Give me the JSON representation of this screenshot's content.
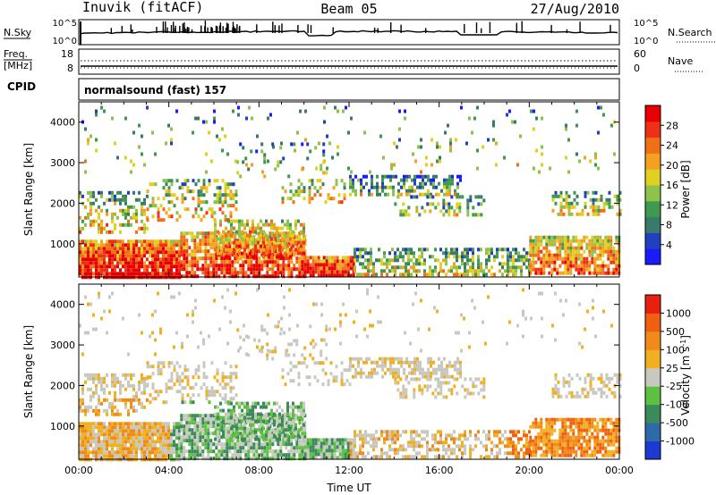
{
  "header": {
    "station": "Inuvik (fitACF)",
    "beam": "Beam 05",
    "date": "27/Aug/2010"
  },
  "top_panel": {
    "left_label": "N.Sky",
    "right_label": "N.Search",
    "left_ticks": [
      "10^5",
      "10^0"
    ],
    "right_ticks": [
      "10^5",
      "10^0"
    ]
  },
  "freq_panel": {
    "left_label_1": "Freq.",
    "left_label_2": "[MHz]",
    "right_label": "Nave",
    "left_ticks": [
      "18",
      "8"
    ],
    "right_ticks": [
      "60",
      "0"
    ]
  },
  "cpid": {
    "label": "CPID",
    "value": "normalsound (fast) 157"
  },
  "chart_data": [
    {
      "type": "heatmap",
      "quantity": "Power",
      "ylabel": "Slant Range [km]",
      "xlabel": "",
      "x_ticks": [
        "00:00",
        "04:00",
        "08:00",
        "12:00",
        "16:00",
        "20:00",
        "00:00"
      ],
      "y_ticks": [
        1000,
        2000,
        3000,
        4000
      ],
      "xlim_hours": [
        0,
        24
      ],
      "ylim_km": [
        180,
        4500
      ],
      "colorbar": {
        "label": "Power [dB]",
        "ticks": [
          4,
          8,
          12,
          16,
          20,
          24,
          28
        ],
        "colors": [
          "#1a1aff",
          "#2040c0",
          "#3a7a6a",
          "#3f9a50",
          "#8ec24a",
          "#e0d020",
          "#f4a020",
          "#f07018",
          "#ee3018",
          "#e80000"
        ]
      }
    },
    {
      "type": "heatmap",
      "quantity": "Velocity",
      "ylabel": "Slant Range [km]",
      "xlabel": "Time UT",
      "x_ticks": [
        "00:00",
        "04:00",
        "08:00",
        "12:00",
        "16:00",
        "20:00",
        "00:00"
      ],
      "y_ticks": [
        1000,
        2000,
        3000,
        4000
      ],
      "xlim_hours": [
        0,
        24
      ],
      "ylim_km": [
        180,
        4500
      ],
      "colorbar": {
        "label": "Velocity [m s^-1]",
        "ticks": [
          1000,
          500,
          100,
          25,
          -25,
          -100,
          -500,
          -1000
        ],
        "colors": [
          "#1a3ad0",
          "#2e6aa8",
          "#3a8a5a",
          "#5cc040",
          "#c8c8c0",
          "#f0b020",
          "#f08a18",
          "#f06010",
          "#e82010"
        ]
      }
    }
  ]
}
